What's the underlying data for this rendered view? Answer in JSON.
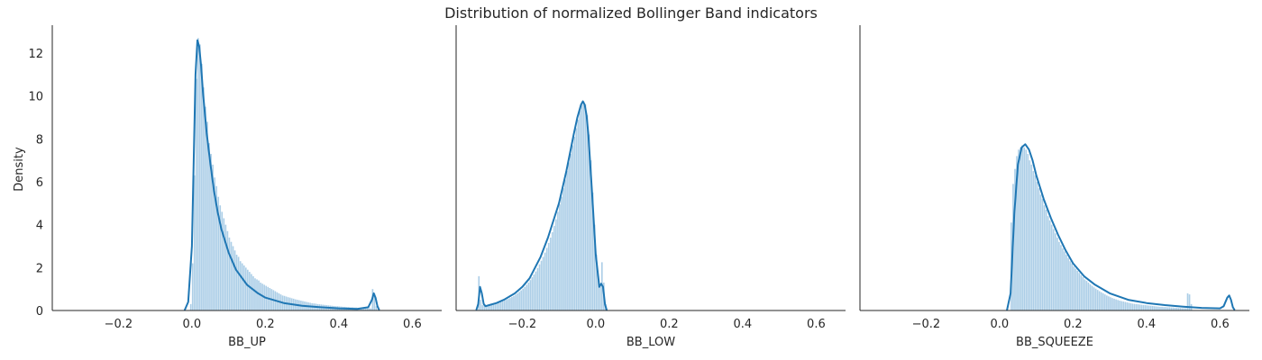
{
  "title": "Distribution of normalized Bollinger Band indicators",
  "ylabel": "Density",
  "colors": {
    "line": "#1f77b4",
    "bar": "#9ec6e3",
    "axis": "#262626"
  },
  "chart_data": [
    {
      "type": "histogram+kde",
      "xlabel": "BB_UP",
      "xlim": [
        -0.38,
        0.68
      ],
      "ylim": [
        0,
        13.3
      ],
      "xticks": [
        -0.2,
        0.0,
        0.2,
        0.4,
        0.6
      ],
      "yticks": [
        0,
        2,
        4,
        6,
        8,
        10,
        12
      ],
      "xtick_labels": [
        "−0.2",
        "0.0",
        "0.2",
        "0.4",
        "0.6"
      ],
      "ytick_labels": [
        "0",
        "2",
        "4",
        "6",
        "8",
        "10",
        "12"
      ],
      "kde": {
        "x": [
          -0.02,
          -0.01,
          0.0,
          0.005,
          0.01,
          0.015,
          0.02,
          0.025,
          0.03,
          0.04,
          0.05,
          0.06,
          0.07,
          0.08,
          0.1,
          0.12,
          0.15,
          0.18,
          0.2,
          0.25,
          0.3,
          0.35,
          0.4,
          0.45,
          0.48,
          0.49,
          0.495,
          0.5,
          0.505,
          0.51
        ],
        "y": [
          0,
          0.4,
          3.0,
          7.0,
          11.0,
          12.6,
          12.3,
          11.4,
          10.2,
          8.3,
          6.9,
          5.6,
          4.6,
          3.8,
          2.7,
          1.9,
          1.2,
          0.8,
          0.6,
          0.35,
          0.22,
          0.15,
          0.1,
          0.07,
          0.15,
          0.5,
          0.8,
          0.6,
          0.2,
          0.02
        ]
      },
      "bins": {
        "start": -0.005,
        "width": 0.005,
        "values": [
          0.3,
          2.2,
          6.3,
          10.8,
          12.7,
          12.4,
          11.5,
          10.4,
          9.5,
          8.8,
          7.8,
          7.3,
          6.8,
          6.2,
          5.8,
          5.3,
          4.9,
          4.6,
          4.3,
          4.0,
          3.7,
          3.4,
          3.2,
          3.0,
          2.8,
          2.6,
          2.5,
          2.3,
          2.2,
          2.1,
          2.0,
          1.9,
          1.8,
          1.7,
          1.6,
          1.5,
          1.45,
          1.4,
          1.3,
          1.25,
          1.2,
          1.15,
          1.1,
          1.05,
          1.0,
          0.95,
          0.9,
          0.85,
          0.8,
          0.75,
          0.7,
          0.68,
          0.65,
          0.62,
          0.6,
          0.57,
          0.55,
          0.52,
          0.5,
          0.48,
          0.46,
          0.44,
          0.42,
          0.4,
          0.38,
          0.36,
          0.34,
          0.33,
          0.32,
          0.3,
          0.29,
          0.28,
          0.27,
          0.26,
          0.25,
          0.24,
          0.23,
          0.22,
          0.21,
          0.2,
          0.2,
          0.19,
          0.18,
          0.17,
          0.17,
          0.16,
          0.16,
          0.15,
          0.15,
          0.14,
          0.14,
          0.13,
          0.13,
          0.12,
          0.12,
          0.12,
          0.11,
          0.11,
          0.1,
          1.0,
          0.8,
          0.2
        ]
      }
    },
    {
      "type": "histogram+kde",
      "xlabel": "BB_LOW",
      "xlim": [
        -0.38,
        0.68
      ],
      "ylim": [
        0,
        13.3
      ],
      "xticks": [
        -0.2,
        0.0,
        0.2,
        0.4,
        0.6
      ],
      "xtick_labels": [
        "−0.2",
        "0.0",
        "0.2",
        "0.4",
        "0.6"
      ],
      "kde": {
        "x": [
          -0.325,
          -0.32,
          -0.315,
          -0.31,
          -0.305,
          -0.3,
          -0.29,
          -0.27,
          -0.25,
          -0.22,
          -0.2,
          -0.18,
          -0.15,
          -0.13,
          -0.1,
          -0.08,
          -0.06,
          -0.05,
          -0.04,
          -0.035,
          -0.03,
          -0.025,
          -0.02,
          -0.01,
          0.0,
          0.01,
          0.015,
          0.02,
          0.025,
          0.03
        ],
        "y": [
          0.02,
          0.3,
          1.1,
          0.8,
          0.3,
          0.2,
          0.25,
          0.35,
          0.5,
          0.8,
          1.1,
          1.5,
          2.5,
          3.4,
          5.0,
          6.5,
          8.2,
          9.0,
          9.6,
          9.75,
          9.6,
          9.1,
          8.2,
          5.5,
          2.6,
          1.1,
          1.25,
          1.1,
          0.3,
          0.01
        ]
      },
      "bins": {
        "start": -0.32,
        "width": 0.005,
        "values": [
          1.6,
          0.5,
          0.25,
          0.22,
          0.23,
          0.25,
          0.27,
          0.29,
          0.31,
          0.33,
          0.35,
          0.37,
          0.4,
          0.43,
          0.46,
          0.5,
          0.54,
          0.58,
          0.63,
          0.68,
          0.74,
          0.8,
          0.87,
          0.94,
          1.02,
          1.1,
          1.2,
          1.3,
          1.42,
          1.55,
          1.68,
          1.82,
          1.98,
          2.15,
          2.32,
          2.5,
          2.7,
          2.92,
          3.15,
          3.4,
          3.65,
          3.95,
          4.25,
          4.6,
          4.95,
          5.3,
          5.7,
          6.1,
          6.5,
          6.9,
          7.3,
          7.7,
          8.1,
          8.5,
          8.9,
          9.3,
          9.6,
          9.75,
          9.6,
          9.1,
          8.2,
          7.0,
          5.5,
          4.0,
          2.6,
          1.6,
          1.1,
          2.25,
          1.3,
          0.3
        ]
      }
    },
    {
      "type": "histogram+kde",
      "xlabel": "BB_SQUEEZE",
      "xlim": [
        -0.38,
        0.68
      ],
      "ylim": [
        0,
        13.3
      ],
      "xticks": [
        -0.2,
        0.0,
        0.2,
        0.4,
        0.6
      ],
      "xtick_labels": [
        "−0.2",
        "0.0",
        "0.2",
        "0.4",
        "0.6"
      ],
      "kde": {
        "x": [
          0.02,
          0.03,
          0.04,
          0.05,
          0.06,
          0.07,
          0.08,
          0.09,
          0.1,
          0.12,
          0.14,
          0.16,
          0.18,
          0.2,
          0.23,
          0.26,
          0.3,
          0.35,
          0.4,
          0.45,
          0.5,
          0.55,
          0.6,
          0.61,
          0.62,
          0.625,
          0.63,
          0.635,
          0.64
        ],
        "y": [
          0,
          0.8,
          4.5,
          6.8,
          7.6,
          7.75,
          7.5,
          7.0,
          6.3,
          5.2,
          4.3,
          3.5,
          2.8,
          2.2,
          1.6,
          1.2,
          0.8,
          0.5,
          0.35,
          0.25,
          0.18,
          0.12,
          0.1,
          0.2,
          0.6,
          0.7,
          0.5,
          0.15,
          0.02
        ]
      },
      "bins": {
        "start": 0.03,
        "width": 0.005,
        "values": [
          4.1,
          5.9,
          6.6,
          7.2,
          7.5,
          7.6,
          7.7,
          7.6,
          7.5,
          7.3,
          7.0,
          6.8,
          6.5,
          6.3,
          6.0,
          5.7,
          5.4,
          5.2,
          4.9,
          4.7,
          4.4,
          4.2,
          4.0,
          3.8,
          3.6,
          3.4,
          3.2,
          3.05,
          2.9,
          2.75,
          2.6,
          2.45,
          2.3,
          2.2,
          2.05,
          1.95,
          1.85,
          1.75,
          1.65,
          1.55,
          1.45,
          1.38,
          1.3,
          1.22,
          1.15,
          1.08,
          1.02,
          0.96,
          0.9,
          0.85,
          0.8,
          0.75,
          0.7,
          0.66,
          0.62,
          0.58,
          0.55,
          0.52,
          0.49,
          0.46,
          0.44,
          0.42,
          0.4,
          0.38,
          0.36,
          0.34,
          0.32,
          0.31,
          0.3,
          0.29,
          0.28,
          0.27,
          0.26,
          0.25,
          0.24,
          0.23,
          0.22,
          0.21,
          0.2,
          0.19,
          0.18,
          0.17,
          0.17,
          0.16,
          0.16,
          0.15,
          0.15,
          0.14,
          0.14,
          0.13,
          0.13,
          0.12,
          0.12,
          0.11,
          0.11,
          0.11,
          0.8,
          0.75,
          0.3
        ]
      }
    }
  ]
}
